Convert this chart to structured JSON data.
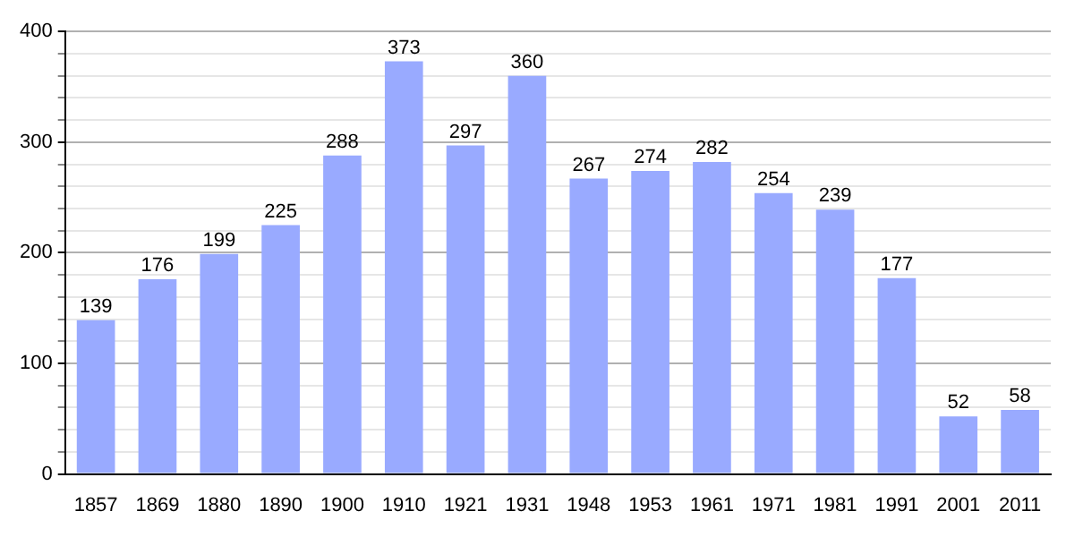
{
  "chart_data": {
    "type": "bar",
    "categories": [
      "1857",
      "1869",
      "1880",
      "1890",
      "1900",
      "1910",
      "1921",
      "1931",
      "1948",
      "1953",
      "1961",
      "1971",
      "1981",
      "1991",
      "2001",
      "2011"
    ],
    "values": [
      139,
      176,
      199,
      225,
      288,
      373,
      297,
      360,
      267,
      274,
      282,
      254,
      239,
      177,
      52,
      58
    ],
    "color": "#99aaff",
    "ylim": [
      0,
      400
    ],
    "yticks": [
      0,
      {
        "value": 20,
        "label": null
      },
      {
        "value": 40,
        "label": null
      },
      {
        "value": 60,
        "label": null
      },
      {
        "value": 80,
        "label": null
      },
      100,
      {
        "value": 120,
        "label": null
      },
      {
        "value": 140,
        "label": null
      },
      {
        "value": 160,
        "label": null
      },
      {
        "value": 180,
        "label": null
      },
      200,
      {
        "value": 220,
        "label": null
      },
      {
        "value": 240,
        "label": null
      },
      {
        "value": 260,
        "label": null
      },
      {
        "value": 280,
        "label": null
      },
      300,
      {
        "value": 320,
        "label": null
      },
      {
        "value": 340,
        "label": null
      },
      {
        "value": 360,
        "label": null
      },
      {
        "value": 380,
        "label": null
      },
      400
    ],
    "grid": "y",
    "data_labels": true
  }
}
